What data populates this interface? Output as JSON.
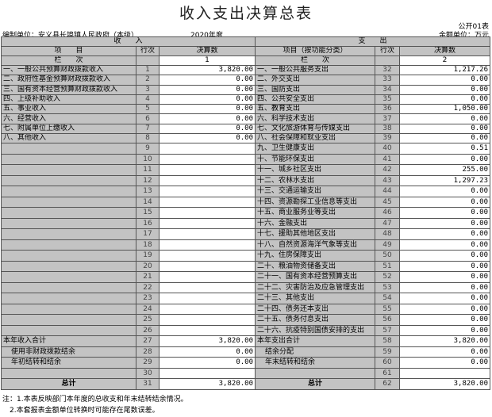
{
  "title": "收入支出决算总表",
  "form_no": "公开01表",
  "unit_label": "编制单位：安义县长埠镇人民政府（本级）",
  "year": "2020年度",
  "amount_unit": "金额单位：万元",
  "header": {
    "income": "收　　入",
    "expense": "支　　出",
    "item": "项　　目",
    "row_no": "行次",
    "amount": "决算数",
    "expense_item": "项目（按功能分类）",
    "column": "栏　　次",
    "col1": "1",
    "col2": "2"
  },
  "rows": [
    {
      "in": "一、一般公共预算财政拨款收入",
      "ln": "1",
      "la": "3,820.00",
      "out": "一、一般公共服务支出",
      "rn": "32",
      "ra": "1,217.26"
    },
    {
      "in": "二、政府性基金预算财政拨款收入",
      "ln": "2",
      "la": "0.00",
      "out": "二、外交支出",
      "rn": "33",
      "ra": "0.00"
    },
    {
      "in": "三、国有资本经营预算财政拨款收入",
      "ln": "3",
      "la": "0.00",
      "out": "三、国防支出",
      "rn": "34",
      "ra": "0.00"
    },
    {
      "in": "四、上级补助收入",
      "ln": "4",
      "la": "0.00",
      "out": "四、公共安全支出",
      "rn": "35",
      "ra": "0.00"
    },
    {
      "in": "五、事业收入",
      "ln": "5",
      "la": "0.00",
      "out": "五、教育支出",
      "rn": "36",
      "ra": "1,050.00"
    },
    {
      "in": "六、经营收入",
      "ln": "6",
      "la": "0.00",
      "out": "六、科学技术支出",
      "rn": "37",
      "ra": "0.00"
    },
    {
      "in": "七、附属单位上缴收入",
      "ln": "7",
      "la": "0.00",
      "out": "七、文化旅游体育与传媒支出",
      "rn": "38",
      "ra": "0.00"
    },
    {
      "in": "八、其他收入",
      "ln": "8",
      "la": "0.00",
      "out": "八、社会保障和就业支出",
      "rn": "39",
      "ra": "0.00"
    },
    {
      "in": "",
      "ln": "9",
      "la": "",
      "out": "九、卫生健康支出",
      "rn": "40",
      "ra": "0.51"
    },
    {
      "in": "",
      "ln": "10",
      "la": "",
      "out": "十、节能环保支出",
      "rn": "41",
      "ra": "0.00"
    },
    {
      "in": "",
      "ln": "11",
      "la": "",
      "out": "十一、城乡社区支出",
      "rn": "42",
      "ra": "255.00"
    },
    {
      "in": "",
      "ln": "12",
      "la": "",
      "out": "十二、农林水支出",
      "rn": "43",
      "ra": "1,297.23"
    },
    {
      "in": "",
      "ln": "13",
      "la": "",
      "out": "十三、交通运输支出",
      "rn": "44",
      "ra": "0.00"
    },
    {
      "in": "",
      "ln": "14",
      "la": "",
      "out": "十四、资源勘探工业信息等支出",
      "rn": "45",
      "ra": "0.00"
    },
    {
      "in": "",
      "ln": "15",
      "la": "",
      "out": "十五、商业服务业等支出",
      "rn": "46",
      "ra": "0.00"
    },
    {
      "in": "",
      "ln": "16",
      "la": "",
      "out": "十六、金融支出",
      "rn": "47",
      "ra": "0.00"
    },
    {
      "in": "",
      "ln": "17",
      "la": "",
      "out": "十七、援助其他地区支出",
      "rn": "48",
      "ra": "0.00"
    },
    {
      "in": "",
      "ln": "18",
      "la": "",
      "out": "十八、自然资源海洋气象等支出",
      "rn": "49",
      "ra": "0.00"
    },
    {
      "in": "",
      "ln": "19",
      "la": "",
      "out": "十九、住房保障支出",
      "rn": "50",
      "ra": "0.00"
    },
    {
      "in": "",
      "ln": "20",
      "la": "",
      "out": "二十、粮油物资储备支出",
      "rn": "51",
      "ra": "0.00"
    },
    {
      "in": "",
      "ln": "21",
      "la": "",
      "out": "二十一、国有资本经营预算支出",
      "rn": "52",
      "ra": "0.00"
    },
    {
      "in": "",
      "ln": "22",
      "la": "",
      "out": "二十二、灾害防治及应急管理支出",
      "rn": "53",
      "ra": "0.00"
    },
    {
      "in": "",
      "ln": "23",
      "la": "",
      "out": "二十三、其他支出",
      "rn": "54",
      "ra": "0.00"
    },
    {
      "in": "",
      "ln": "24",
      "la": "",
      "out": "二十四、债务还本支出",
      "rn": "55",
      "ra": "0.00"
    },
    {
      "in": "",
      "ln": "25",
      "la": "",
      "out": "二十五、债务付息支出",
      "rn": "56",
      "ra": "0.00"
    },
    {
      "in": "",
      "ln": "26",
      "la": "",
      "out": "二十六、抗疫特别国债安排的支出",
      "rn": "57",
      "ra": "0.00"
    },
    {
      "in": "本年收入合计",
      "ln": "27",
      "la": "3,820.00",
      "out": "本年支出合计",
      "rn": "58",
      "ra": "3,820.00"
    },
    {
      "in": "使用非财政拨款结余",
      "ln": "28",
      "la": "0.00",
      "out": "结余分配",
      "rn": "59",
      "ra": "0.00",
      "indent": true
    },
    {
      "in": "年初结转和结余",
      "ln": "29",
      "la": "0.00",
      "out": "年末结转和结余",
      "rn": "60",
      "ra": "0.00",
      "indent": true
    },
    {
      "in": "",
      "ln": "30",
      "la": "",
      "out": "",
      "rn": "61",
      "ra": ""
    },
    {
      "in": "总计",
      "ln": "31",
      "la": "3,820.00",
      "out": "总计",
      "rn": "62",
      "ra": "3,820.00",
      "total": true
    }
  ],
  "notes": [
    "注：1.本表反映部门本年度的总收支和年末结转结余情况。",
    "　2.本套报表金额单位转换时可能存在尾数误差。"
  ]
}
